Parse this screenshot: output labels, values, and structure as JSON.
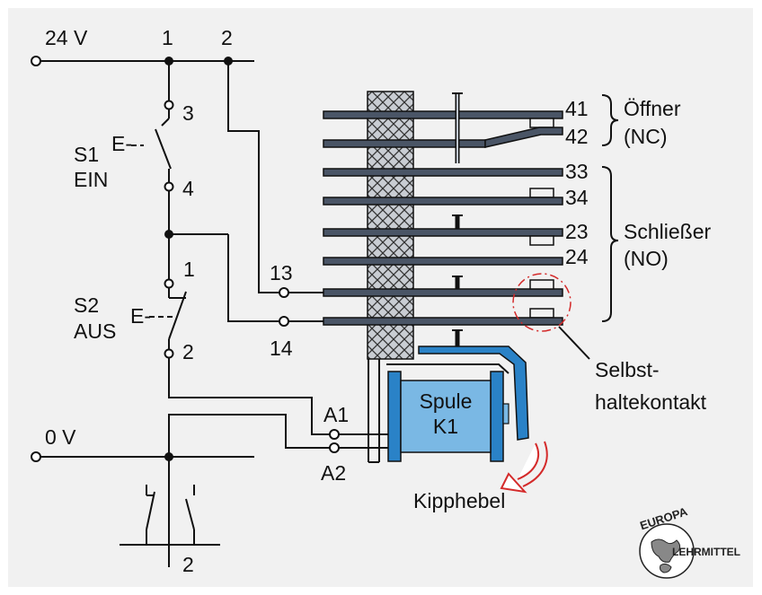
{
  "supply": {
    "top": "24 V",
    "bottom": "0 V"
  },
  "nodes": {
    "n1": "1",
    "n2": "2"
  },
  "s1": {
    "name": "S1",
    "sub": "EIN",
    "actuator": "E-",
    "pin_top": "3",
    "pin_bottom": "4"
  },
  "s2": {
    "name": "S2",
    "sub": "AUS",
    "actuator": "E-",
    "pin_top": "1",
    "pin_bottom": "2"
  },
  "coil_terms": {
    "a1": "A1",
    "a2": "A2",
    "t13": "13",
    "t14": "14"
  },
  "coil": {
    "line1": "Spule",
    "line2": "K1"
  },
  "contacts": [
    "41",
    "42",
    "33",
    "34",
    "23",
    "24"
  ],
  "groups": {
    "nc": {
      "line1": "Öffner",
      "line2": "(NC)"
    },
    "no": {
      "line1": "Schließer",
      "line2": "(NO)"
    }
  },
  "callouts": {
    "self_hold_1": "Selbst-",
    "self_hold_2": "haltekontakt",
    "lever": "Kipphebel"
  },
  "symbol": {
    "label": "2"
  },
  "logo": {
    "top": "EUROPA",
    "side": "LEHRMITTEL"
  },
  "colors": {
    "coil": "#7ab8e4",
    "coil_frame": "#2a82c7",
    "lever_arrow": "#d42a2a",
    "contact_bar": "#4a5566"
  }
}
